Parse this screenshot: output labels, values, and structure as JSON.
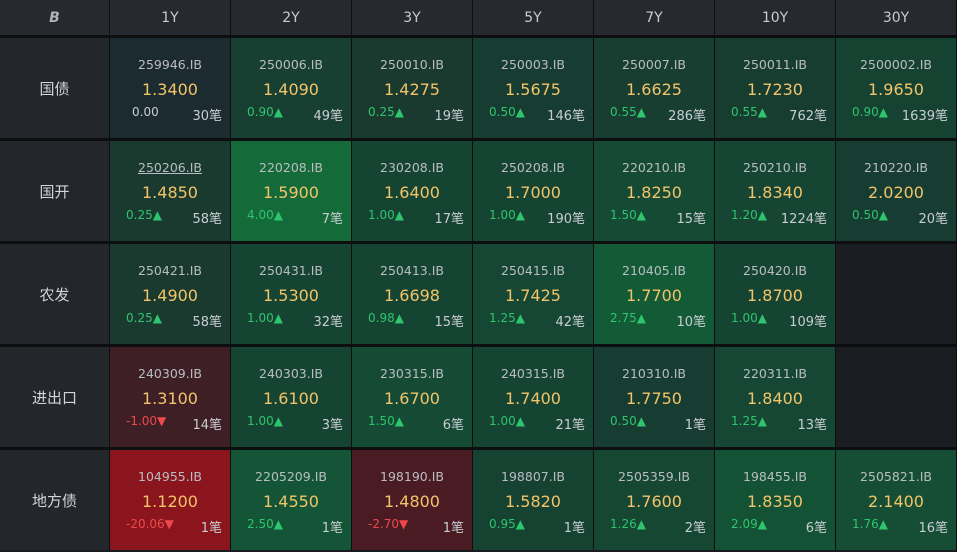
{
  "header": {
    "logo": "B",
    "tenors": [
      "1Y",
      "2Y",
      "3Y",
      "5Y",
      "7Y",
      "10Y",
      "30Y"
    ]
  },
  "rows": [
    {
      "label": "国债",
      "cells": [
        {
          "code": "259946.IB",
          "price": "1.3400",
          "chg": "0.00",
          "dir": "flat",
          "count": "30笔",
          "bg": "#1c2b2f"
        },
        {
          "code": "250006.IB",
          "price": "1.4090",
          "chg": "0.90▲",
          "dir": "up",
          "count": "49笔",
          "bg": "#173f32"
        },
        {
          "code": "250010.IB",
          "price": "1.4275",
          "chg": "0.25▲",
          "dir": "up",
          "count": "19笔",
          "bg": "#1a3a2f"
        },
        {
          "code": "250003.IB",
          "price": "1.5675",
          "chg": "0.50▲",
          "dir": "up",
          "count": "146笔",
          "bg": "#173c31"
        },
        {
          "code": "250007.IB",
          "price": "1.6625",
          "chg": "0.55▲",
          "dir": "up",
          "count": "286笔",
          "bg": "#173e31"
        },
        {
          "code": "250011.IB",
          "price": "1.7230",
          "chg": "0.55▲",
          "dir": "up",
          "count": "762笔",
          "bg": "#173d30"
        },
        {
          "code": "2500002.IB",
          "price": "1.9650",
          "chg": "0.90▲",
          "dir": "up",
          "count": "1639笔",
          "bg": "#164231"
        }
      ]
    },
    {
      "label": "国开",
      "cells": [
        {
          "code": "250206.IB",
          "price": "1.4850",
          "chg": "0.25▲",
          "dir": "up",
          "count": "58笔",
          "bg": "#1a3a2f",
          "underline": true
        },
        {
          "code": "220208.IB",
          "price": "1.5900",
          "chg": "4.00▲",
          "dir": "up",
          "count": "7笔",
          "bg": "#146a38"
        },
        {
          "code": "230208.IB",
          "price": "1.6400",
          "chg": "1.00▲",
          "dir": "up",
          "count": "17笔",
          "bg": "#164432"
        },
        {
          "code": "250208.IB",
          "price": "1.7000",
          "chg": "1.00▲",
          "dir": "up",
          "count": "190笔",
          "bg": "#164432"
        },
        {
          "code": "220210.IB",
          "price": "1.8250",
          "chg": "1.50▲",
          "dir": "up",
          "count": "15笔",
          "bg": "#154b35"
        },
        {
          "code": "250210.IB",
          "price": "1.8340",
          "chg": "1.20▲",
          "dir": "up",
          "count": "1224笔",
          "bg": "#164633"
        },
        {
          "code": "210220.IB",
          "price": "2.0200",
          "chg": "0.50▲",
          "dir": "up",
          "count": "20笔",
          "bg": "#173c31"
        }
      ]
    },
    {
      "label": "农发",
      "cells": [
        {
          "code": "250421.IB",
          "price": "1.4900",
          "chg": "0.25▲",
          "dir": "up",
          "count": "58笔",
          "bg": "#1a3a2f"
        },
        {
          "code": "250431.IB",
          "price": "1.5300",
          "chg": "1.00▲",
          "dir": "up",
          "count": "32笔",
          "bg": "#164432"
        },
        {
          "code": "250413.IB",
          "price": "1.6698",
          "chg": "0.98▲",
          "dir": "up",
          "count": "15笔",
          "bg": "#164432"
        },
        {
          "code": "250415.IB",
          "price": "1.7425",
          "chg": "1.25▲",
          "dir": "up",
          "count": "42笔",
          "bg": "#164734"
        },
        {
          "code": "210405.IB",
          "price": "1.7700",
          "chg": "2.75▲",
          "dir": "up",
          "count": "10笔",
          "bg": "#135a36"
        },
        {
          "code": "250420.IB",
          "price": "1.8700",
          "chg": "1.00▲",
          "dir": "up",
          "count": "109笔",
          "bg": "#164432"
        },
        {
          "empty": true
        }
      ]
    },
    {
      "label": "进出口",
      "cells": [
        {
          "code": "240309.IB",
          "price": "1.3100",
          "chg": "-1.00▼",
          "dir": "down",
          "count": "14笔",
          "bg": "#3d1f25"
        },
        {
          "code": "240303.IB",
          "price": "1.6100",
          "chg": "1.00▲",
          "dir": "up",
          "count": "3笔",
          "bg": "#164432"
        },
        {
          "code": "230315.IB",
          "price": "1.6700",
          "chg": "1.50▲",
          "dir": "up",
          "count": "6笔",
          "bg": "#154b35"
        },
        {
          "code": "240315.IB",
          "price": "1.7400",
          "chg": "1.00▲",
          "dir": "up",
          "count": "21笔",
          "bg": "#164432"
        },
        {
          "code": "210310.IB",
          "price": "1.7750",
          "chg": "0.50▲",
          "dir": "up",
          "count": "1笔",
          "bg": "#173c31"
        },
        {
          "code": "220311.IB",
          "price": "1.8400",
          "chg": "1.25▲",
          "dir": "up",
          "count": "13笔",
          "bg": "#164734"
        },
        {
          "empty": true
        }
      ]
    },
    {
      "label": "地方债",
      "cells": [
        {
          "code": "104955.IB",
          "price": "1.1200",
          "chg": "-20.06▼",
          "dir": "down",
          "count": "1笔",
          "bg": "#8b151c"
        },
        {
          "code": "2205209.IB",
          "price": "1.4550",
          "chg": "2.50▲",
          "dir": "up",
          "count": "1笔",
          "bg": "#135536"
        },
        {
          "code": "198190.IB",
          "price": "1.4800",
          "chg": "-2.70▼",
          "dir": "down",
          "count": "1笔",
          "bg": "#4a1b23"
        },
        {
          "code": "198807.IB",
          "price": "1.5820",
          "chg": "0.95▲",
          "dir": "up",
          "count": "1笔",
          "bg": "#164232"
        },
        {
          "code": "2505359.IB",
          "price": "1.7600",
          "chg": "1.26▲",
          "dir": "up",
          "count": "2笔",
          "bg": "#164733"
        },
        {
          "code": "198455.IB",
          "price": "1.8350",
          "chg": "2.09▲",
          "dir": "up",
          "count": "6笔",
          "bg": "#145235"
        },
        {
          "code": "2505821.IB",
          "price": "2.1400",
          "chg": "1.76▲",
          "dir": "up",
          "count": "16笔",
          "bg": "#154e35"
        }
      ]
    }
  ]
}
